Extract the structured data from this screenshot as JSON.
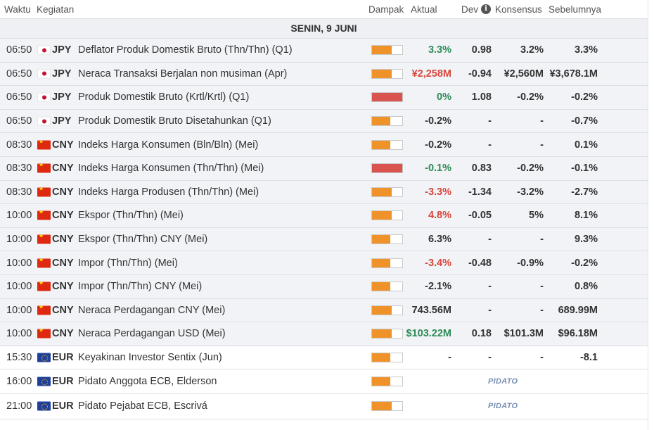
{
  "header": {
    "time": "Waktu",
    "event": "Kegiatan",
    "impact": "Dampak",
    "actual": "Aktual",
    "dev": "Dev",
    "consensus": "Konsensus",
    "previous": "Sebelumnya"
  },
  "day_label": "SENIN, 9 JUNI",
  "colors": {
    "impact_medium": "#f0922a",
    "impact_high": "#d9534f",
    "positive": "#2e8b57",
    "negative": "#d9463a"
  },
  "rows": [
    {
      "time": "06:50",
      "flag": "jp-flag-icon",
      "currency": "JPY",
      "event": "Deflator Produk Domestik Bruto (Thn/Thn) (Q1)",
      "impact_level": 2,
      "actual": "3.3%",
      "actual_trend": "positive",
      "dev": "0.98",
      "consensus": "3.2%",
      "previous": "3.3%"
    },
    {
      "time": "06:50",
      "flag": "jp-flag-icon",
      "currency": "JPY",
      "event": "Neraca Transaksi Berjalan non musiman (Apr)",
      "impact_level": 2,
      "actual": "¥2,258M",
      "actual_trend": "negative",
      "dev": "-0.94",
      "consensus": "¥2,560M",
      "previous": "¥3,678.1M"
    },
    {
      "time": "06:50",
      "flag": "jp-flag-icon",
      "currency": "JPY",
      "event": "Produk Domestik Bruto (Krtl/Krtl) (Q1)",
      "impact_level": 3,
      "actual": "0%",
      "actual_trend": "positive",
      "dev": "1.08",
      "consensus": "-0.2%",
      "previous": "-0.2%"
    },
    {
      "time": "06:50",
      "flag": "jp-flag-icon",
      "currency": "JPY",
      "event": "Produk Domestik Bruto Disetahunkan (Q1)",
      "impact_level": 1,
      "actual": "-0.2%",
      "actual_trend": "neutral",
      "dev": "-",
      "consensus": "-",
      "previous": "-0.7%"
    },
    {
      "time": "08:30",
      "flag": "cn-flag-icon",
      "currency": "CNY",
      "event": "Indeks Harga Konsumen (Bln/Bln) (Mei)",
      "impact_level": 1,
      "actual": "-0.2%",
      "actual_trend": "neutral",
      "dev": "-",
      "consensus": "-",
      "previous": "0.1%"
    },
    {
      "time": "08:30",
      "flag": "cn-flag-icon",
      "currency": "CNY",
      "event": "Indeks Harga Konsumen (Thn/Thn) (Mei)",
      "impact_level": 3,
      "actual": "-0.1%",
      "actual_trend": "positive",
      "dev": "0.83",
      "consensus": "-0.2%",
      "previous": "-0.1%"
    },
    {
      "time": "08:30",
      "flag": "cn-flag-icon",
      "currency": "CNY",
      "event": "Indeks Harga Produsen (Thn/Thn) (Mei)",
      "impact_level": 2,
      "actual": "-3.3%",
      "actual_trend": "negative",
      "dev": "-1.34",
      "consensus": "-3.2%",
      "previous": "-2.7%"
    },
    {
      "time": "10:00",
      "flag": "cn-flag-icon",
      "currency": "CNY",
      "event": "Ekspor (Thn/Thn) (Mei)",
      "impact_level": 2,
      "actual": "4.8%",
      "actual_trend": "negative",
      "dev": "-0.05",
      "consensus": "5%",
      "previous": "8.1%"
    },
    {
      "time": "10:00",
      "flag": "cn-flag-icon",
      "currency": "CNY",
      "event": "Ekspor (Thn/Thn) CNY (Mei)",
      "impact_level": 1,
      "actual": "6.3%",
      "actual_trend": "neutral",
      "dev": "-",
      "consensus": "-",
      "previous": "9.3%"
    },
    {
      "time": "10:00",
      "flag": "cn-flag-icon",
      "currency": "CNY",
      "event": "Impor (Thn/Thn) (Mei)",
      "impact_level": 1,
      "actual": "-3.4%",
      "actual_trend": "negative",
      "dev": "-0.48",
      "consensus": "-0.9%",
      "previous": "-0.2%"
    },
    {
      "time": "10:00",
      "flag": "cn-flag-icon",
      "currency": "CNY",
      "event": "Impor (Thn/Thn) CNY (Mei)",
      "impact_level": 1,
      "actual": "-2.1%",
      "actual_trend": "neutral",
      "dev": "-",
      "consensus": "-",
      "previous": "0.8%"
    },
    {
      "time": "10:00",
      "flag": "cn-flag-icon",
      "currency": "CNY",
      "event": "Neraca Perdagangan CNY (Mei)",
      "impact_level": 2,
      "actual": "743.56M",
      "actual_trend": "neutral",
      "dev": "-",
      "consensus": "-",
      "previous": "689.99M"
    },
    {
      "time": "10:00",
      "flag": "cn-flag-icon",
      "currency": "CNY",
      "event": "Neraca Perdagangan USD (Mei)",
      "impact_level": 2,
      "actual": "$103.22M",
      "actual_trend": "positive",
      "dev": "0.18",
      "consensus": "$101.3M",
      "previous": "$96.18M"
    },
    {
      "time": "15:30",
      "flag": "eu-flag-icon",
      "currency": "EUR",
      "event": "Keyakinan Investor Sentix (Jun)",
      "impact_level": 1,
      "actual": "-",
      "actual_trend": "neutral",
      "dev": "-",
      "consensus": "-",
      "previous": "-8.1"
    },
    {
      "time": "16:00",
      "flag": "eu-flag-icon",
      "currency": "EUR",
      "event": "Pidato Anggota ECB, Elderson",
      "impact_level": 1,
      "speech": "PIDATO"
    },
    {
      "time": "21:00",
      "flag": "eu-flag-icon",
      "currency": "EUR",
      "event": "Pidato Pejabat ECB, Escrivá",
      "impact_level": 2,
      "speech": "PIDATO"
    }
  ]
}
